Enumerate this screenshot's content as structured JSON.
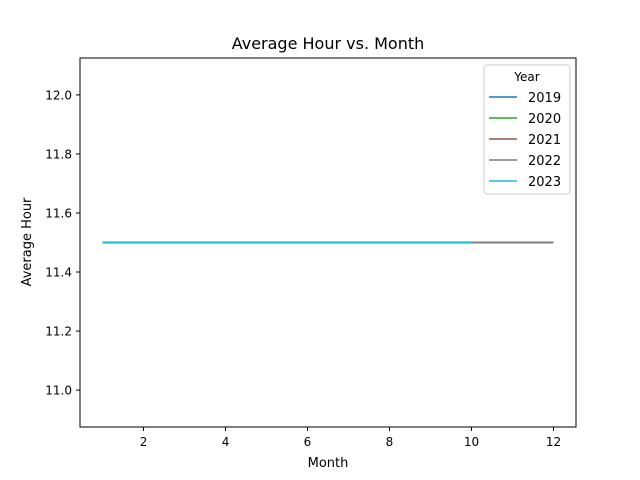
{
  "chart_data": {
    "type": "line",
    "title": "Average Hour vs. Month",
    "xlabel": "Month",
    "ylabel": "Average Hour",
    "xlim": [
      0.45,
      12.55
    ],
    "ylim": [
      10.875,
      12.125
    ],
    "xticks": [
      2,
      4,
      6,
      8,
      10,
      12
    ],
    "yticks": [
      11.0,
      11.2,
      11.4,
      11.6,
      11.8,
      12.0
    ],
    "ytick_labels": [
      "11.0",
      "11.2",
      "11.4",
      "11.6",
      "11.8",
      "12.0"
    ],
    "grid": false,
    "legend": {
      "title": "Year",
      "placement": "top-right"
    },
    "series": [
      {
        "name": "2019",
        "color": "#1f77b4",
        "x": [
          1,
          2,
          3,
          4,
          5,
          6,
          7,
          8,
          9,
          10,
          11,
          12
        ],
        "y": [
          11.5,
          11.5,
          11.5,
          11.5,
          11.5,
          11.5,
          11.5,
          11.5,
          11.5,
          11.5,
          11.5,
          11.5
        ]
      },
      {
        "name": "2020",
        "color": "#2ca02c",
        "x": [
          1,
          2,
          3,
          4,
          5,
          6,
          7,
          8,
          9,
          10,
          11,
          12
        ],
        "y": [
          11.5,
          11.5,
          11.5,
          11.5,
          11.5,
          11.5,
          11.5,
          11.5,
          11.5,
          11.5,
          11.5,
          11.5
        ]
      },
      {
        "name": "2021",
        "color": "#8c564b",
        "x": [
          1,
          2,
          3,
          4,
          5,
          6,
          7,
          8,
          9,
          10,
          11,
          12
        ],
        "y": [
          11.5,
          11.5,
          11.5,
          11.5,
          11.5,
          11.5,
          11.5,
          11.5,
          11.5,
          11.5,
          11.5,
          11.5
        ]
      },
      {
        "name": "2022",
        "color": "#7f7f7f",
        "x": [
          1,
          2,
          3,
          4,
          5,
          6,
          7,
          8,
          9,
          10,
          11,
          12
        ],
        "y": [
          11.5,
          11.5,
          11.5,
          11.5,
          11.5,
          11.5,
          11.5,
          11.5,
          11.5,
          11.5,
          11.5,
          11.5
        ]
      },
      {
        "name": "2023",
        "color": "#17becf",
        "x": [
          1,
          2,
          3,
          4,
          5,
          6,
          7,
          8,
          9,
          10
        ],
        "y": [
          11.5,
          11.5,
          11.5,
          11.5,
          11.5,
          11.5,
          11.5,
          11.5,
          11.5,
          11.5
        ]
      }
    ]
  }
}
